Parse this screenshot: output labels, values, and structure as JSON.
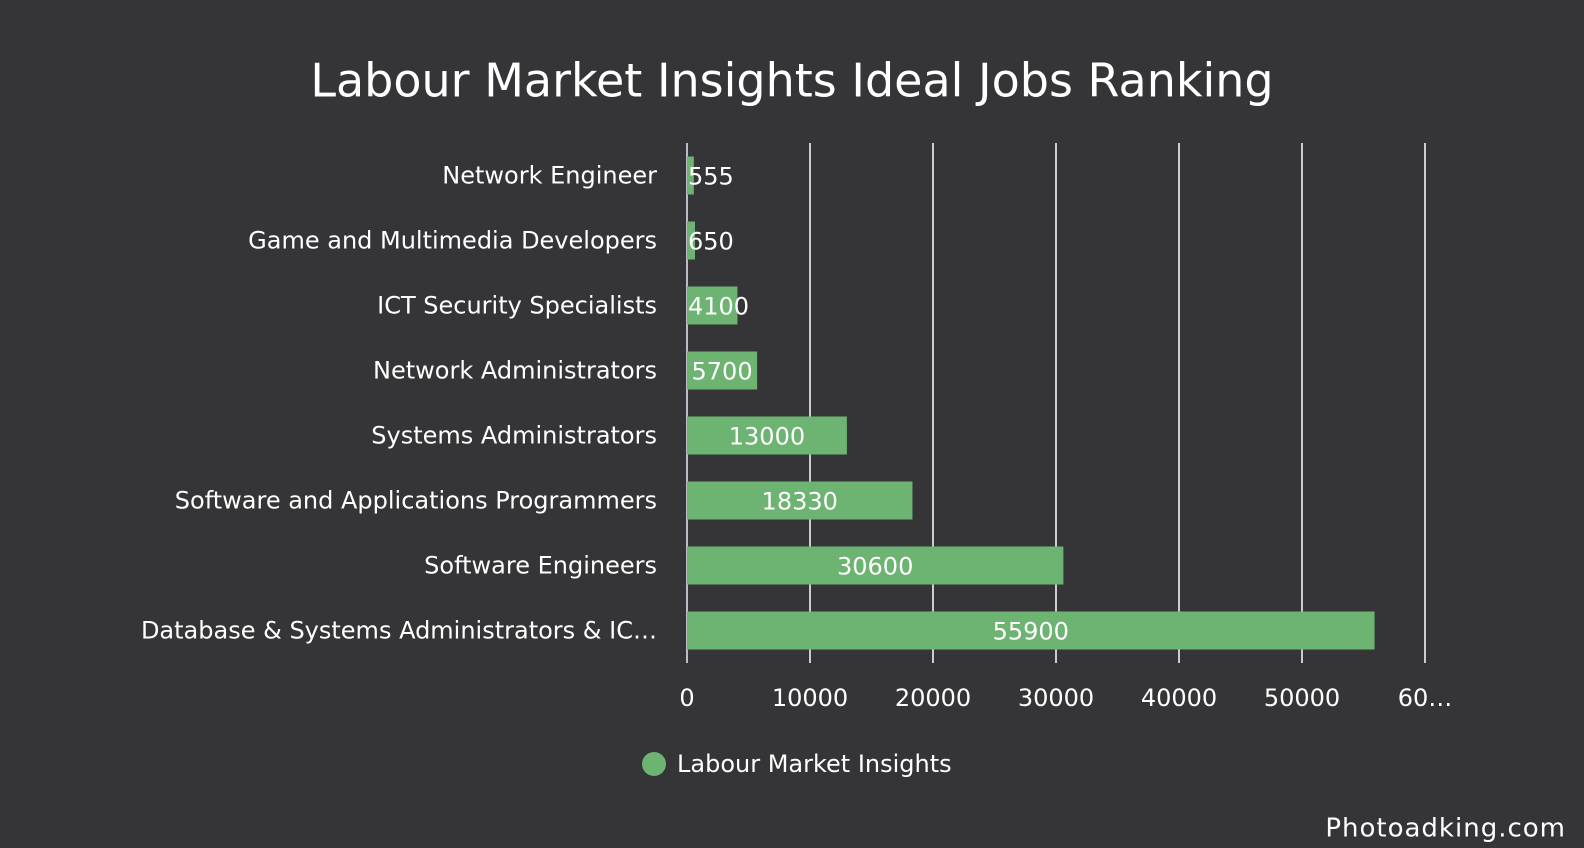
{
  "chart_data": {
    "type": "bar",
    "orientation": "horizontal",
    "title": "Labour Market Insights Ideal Jobs Ranking",
    "categories": [
      "Network Engineer",
      "Game and Multimedia Developers",
      "ICT Security Specialists",
      "Network Administrators",
      "Systems Administrators",
      "Software and Applications Programmers",
      "Software Engineers",
      "Database & Systems Administrators & IC…"
    ],
    "series": [
      {
        "name": "Labour Market Insights",
        "color": "#6db372",
        "values": [
          555,
          650,
          4100,
          5700,
          13000,
          18330,
          30600,
          55900
        ]
      }
    ],
    "xlim": [
      0,
      60000
    ],
    "xticks": [
      0,
      10000,
      20000,
      30000,
      40000,
      50000,
      {
        "value": 60000,
        "label": "60…"
      }
    ],
    "grid": true,
    "legend": "bottom",
    "watermark": "Photoadking.com"
  }
}
